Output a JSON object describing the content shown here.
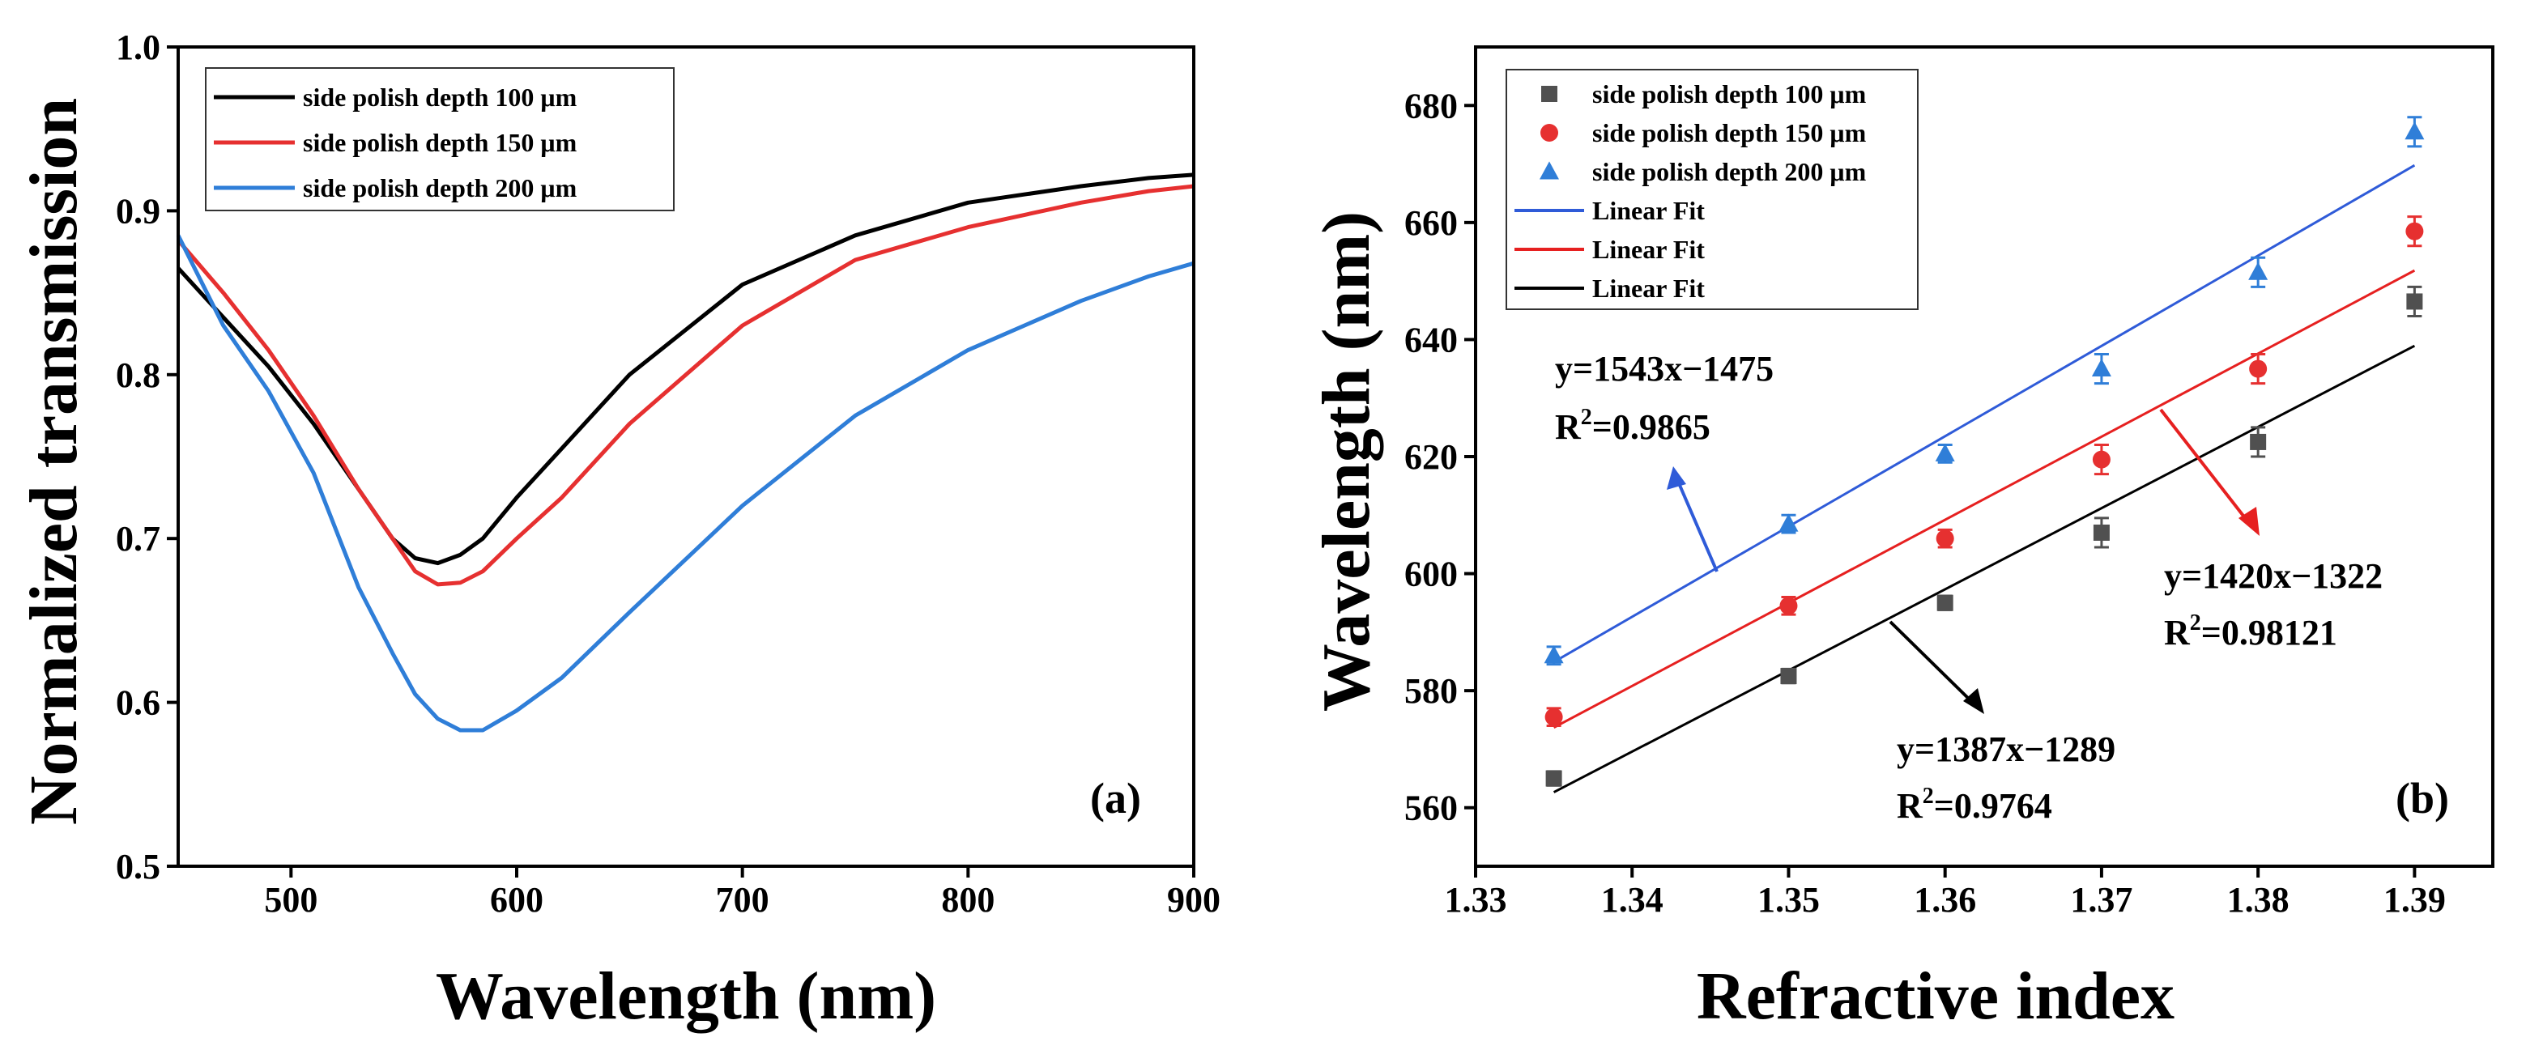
{
  "chart_data": [
    {
      "type": "line",
      "panel_label": "(a)",
      "xlabel": "Wavelength (nm)",
      "ylabel": "Normalized transmission",
      "xlim": [
        450,
        900
      ],
      "ylim": [
        0.5,
        1.0
      ],
      "xticks": [
        500,
        600,
        700,
        800,
        900
      ],
      "yticks": [
        0.5,
        0.6,
        0.7,
        0.8,
        0.9,
        1.0
      ],
      "legend_position": "top-left",
      "series": [
        {
          "name": "side polish depth 100 μm",
          "color": "#000000",
          "x": [
            450,
            470,
            490,
            510,
            530,
            545,
            555,
            565,
            575,
            585,
            600,
            620,
            650,
            700,
            750,
            800,
            850,
            880,
            900
          ],
          "y": [
            0.865,
            0.835,
            0.805,
            0.77,
            0.73,
            0.7,
            0.688,
            0.685,
            0.69,
            0.7,
            0.725,
            0.755,
            0.8,
            0.855,
            0.885,
            0.905,
            0.915,
            0.92,
            0.922
          ]
        },
        {
          "name": "side polish depth 150 μm",
          "color": "#e63030",
          "x": [
            450,
            470,
            490,
            510,
            530,
            545,
            555,
            565,
            575,
            585,
            600,
            620,
            650,
            700,
            750,
            800,
            850,
            880,
            900
          ],
          "y": [
            0.882,
            0.85,
            0.815,
            0.775,
            0.73,
            0.7,
            0.68,
            0.672,
            0.673,
            0.68,
            0.7,
            0.725,
            0.77,
            0.83,
            0.87,
            0.89,
            0.905,
            0.912,
            0.915
          ]
        },
        {
          "name": "side polish depth 200 μm",
          "color": "#2f7ed8",
          "x": [
            450,
            470,
            490,
            510,
            530,
            545,
            555,
            565,
            575,
            585,
            600,
            620,
            650,
            700,
            750,
            800,
            850,
            880,
            900
          ],
          "y": [
            0.885,
            0.83,
            0.79,
            0.74,
            0.67,
            0.63,
            0.605,
            0.59,
            0.583,
            0.583,
            0.595,
            0.615,
            0.655,
            0.72,
            0.775,
            0.815,
            0.845,
            0.86,
            0.868
          ]
        }
      ]
    },
    {
      "type": "scatter",
      "panel_label": "(b)",
      "xlabel": "Refractive index",
      "ylabel": "Wavelength (nm)",
      "xlim": [
        1.33,
        1.395
      ],
      "ylim": [
        550,
        690
      ],
      "xticks": [
        "1.33",
        "1.34",
        "1.35",
        "1.36",
        "1.37",
        "1.38",
        "1.39"
      ],
      "yticks": [
        560,
        580,
        600,
        620,
        640,
        660,
        680
      ],
      "legend_position": "top-left",
      "legend": [
        {
          "label": "side polish depth 100 μm",
          "marker": "square",
          "color": "#505050"
        },
        {
          "label": "side polish depth 150 μm",
          "marker": "circle",
          "color": "#e63030"
        },
        {
          "label": "side polish depth 200 μm",
          "marker": "triangle",
          "color": "#2f7ed8"
        },
        {
          "label": "Linear Fit",
          "marker": "line",
          "color": "#2f5bd8"
        },
        {
          "label": "Linear Fit",
          "marker": "line",
          "color": "#e62020"
        },
        {
          "label": "Linear Fit",
          "marker": "line",
          "color": "#000000"
        }
      ],
      "series": [
        {
          "name": "side polish depth 100 μm",
          "marker": "square",
          "color": "#505050",
          "x": [
            1.335,
            1.35,
            1.36,
            1.37,
            1.38,
            1.39
          ],
          "y": [
            565,
            582.5,
            595,
            607,
            622.5,
            646.5
          ],
          "err": [
            1.2,
            1.2,
            1.2,
            2.5,
            2.5,
            2.5
          ],
          "fit": {
            "slope": 1387,
            "intercept": -1289,
            "color": "#000000"
          }
        },
        {
          "name": "side polish depth 150 μm",
          "marker": "circle",
          "color": "#e63030",
          "x": [
            1.335,
            1.35,
            1.36,
            1.37,
            1.38,
            1.39
          ],
          "y": [
            575.5,
            594.5,
            606,
            619.5,
            635,
            658.5
          ],
          "err": [
            1.5,
            1.5,
            1.5,
            2.5,
            2.5,
            2.5
          ],
          "fit": {
            "slope": 1420,
            "intercept": -1322,
            "color": "#e62020"
          }
        },
        {
          "name": "side polish depth 200 μm",
          "marker": "triangle",
          "color": "#2f7ed8",
          "x": [
            1.335,
            1.35,
            1.36,
            1.37,
            1.38,
            1.39
          ],
          "y": [
            586,
            608.5,
            620.5,
            635,
            651.5,
            675.5
          ],
          "err": [
            1.5,
            1.5,
            1.5,
            2.5,
            2.5,
            2.5
          ],
          "fit": {
            "slope": 1543,
            "intercept": -1475,
            "color": "#2f5bd8"
          }
        }
      ],
      "annotations": [
        {
          "id": "blue",
          "equation": "y=1543x−1475",
          "r2_label": "R",
          "r2_value": "=0.9865"
        },
        {
          "id": "red",
          "equation": "y=1420x−1322",
          "r2_label": "R",
          "r2_value": "=0.98121"
        },
        {
          "id": "black",
          "equation": "y=1387x−1289",
          "r2_label": "R",
          "r2_value": "=0.9764"
        }
      ],
      "superscript": "2"
    }
  ]
}
